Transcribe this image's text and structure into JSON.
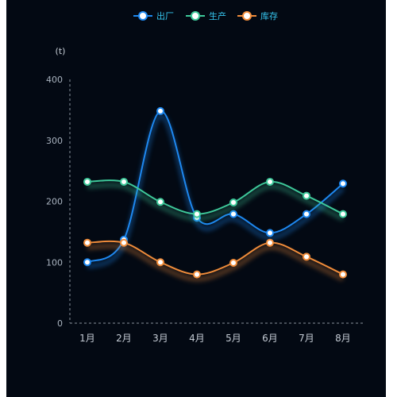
{
  "chart_data": {
    "type": "line",
    "categories": [
      "1月",
      "2月",
      "3月",
      "4月",
      "5月",
      "6月",
      "7月",
      "8月"
    ],
    "series": [
      {
        "name": "出厂",
        "color": "#1e88f0",
        "values": [
          100,
          137,
          348,
          173,
          179,
          148,
          179,
          229
        ]
      },
      {
        "name": "生产",
        "color": "#3ec99a",
        "values": [
          232,
          232,
          199,
          179,
          198,
          232,
          209,
          179
        ]
      },
      {
        "name": "库存",
        "color": "#f08c3a",
        "values": [
          132,
          132,
          100,
          80,
          99,
          132,
          109,
          80
        ]
      }
    ],
    "y_unit": "(t)",
    "ylim": [
      0,
      400
    ],
    "yticks": [
      0,
      100,
      200,
      300,
      400
    ],
    "legend_position": "top-center",
    "smooth": true,
    "grid": false
  }
}
